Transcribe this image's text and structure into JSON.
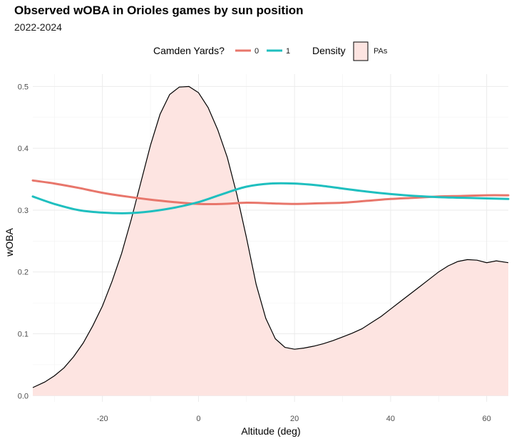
{
  "chart_data": {
    "type": "line",
    "title": "Observed wOBA in Orioles games by sun position",
    "subtitle": "2022-2024",
    "xlabel": "Altitude (deg)",
    "ylabel": "wOBA",
    "xlim": [
      -34.5,
      64.5
    ],
    "ylim": [
      -0.01,
      0.52
    ],
    "x_ticks": [
      -20,
      0,
      20,
      40,
      60
    ],
    "y_ticks": [
      0.0,
      0.1,
      0.2,
      0.3,
      0.4,
      0.5
    ],
    "y_tick_labels": [
      "0.0",
      "0.1",
      "0.2",
      "0.3",
      "0.4",
      "0.5"
    ],
    "grid": true,
    "legend": {
      "position": "top",
      "color_title": "Camden Yards?",
      "fill_title": "Density",
      "fill_label": "PAs"
    },
    "series": [
      {
        "name": "0",
        "color": "#e8766b",
        "x": [
          -34.5,
          -30,
          -25,
          -20,
          -15,
          -10,
          -5,
          0,
          5,
          10,
          15,
          20,
          25,
          30,
          35,
          40,
          45,
          50,
          55,
          60,
          64.5
        ],
        "y": [
          0.348,
          0.343,
          0.336,
          0.328,
          0.322,
          0.317,
          0.313,
          0.31,
          0.31,
          0.312,
          0.311,
          0.31,
          0.311,
          0.312,
          0.315,
          0.318,
          0.32,
          0.322,
          0.323,
          0.324,
          0.324
        ]
      },
      {
        "name": "1",
        "color": "#1fbfbf",
        "x": [
          -34.5,
          -30,
          -25,
          -20,
          -15,
          -10,
          -5,
          0,
          5,
          10,
          15,
          20,
          25,
          30,
          35,
          40,
          45,
          50,
          55,
          60,
          64.5
        ],
        "y": [
          0.322,
          0.31,
          0.3,
          0.296,
          0.295,
          0.298,
          0.304,
          0.313,
          0.326,
          0.338,
          0.343,
          0.343,
          0.34,
          0.335,
          0.33,
          0.326,
          0.323,
          0.321,
          0.32,
          0.319,
          0.318
        ]
      }
    ],
    "density": {
      "name": "PAs",
      "fill": "#fde4e1",
      "stroke": "#000000",
      "x": [
        -34.5,
        -32,
        -30,
        -28,
        -26,
        -24,
        -22,
        -20,
        -18,
        -16,
        -14,
        -12,
        -10,
        -8,
        -6,
        -4,
        -2,
        0,
        2,
        4,
        6,
        8,
        10,
        12,
        14,
        16,
        18,
        20,
        22,
        24,
        26,
        28,
        30,
        32,
        34,
        36,
        38,
        40,
        42,
        44,
        46,
        48,
        50,
        52,
        54,
        56,
        58,
        60,
        62,
        64.5
      ],
      "y": [
        0.013,
        0.022,
        0.032,
        0.045,
        0.063,
        0.085,
        0.113,
        0.145,
        0.185,
        0.23,
        0.285,
        0.345,
        0.405,
        0.455,
        0.487,
        0.499,
        0.5,
        0.49,
        0.466,
        0.43,
        0.385,
        0.325,
        0.255,
        0.18,
        0.125,
        0.092,
        0.078,
        0.075,
        0.077,
        0.08,
        0.084,
        0.089,
        0.095,
        0.101,
        0.108,
        0.118,
        0.128,
        0.14,
        0.152,
        0.164,
        0.176,
        0.188,
        0.2,
        0.21,
        0.217,
        0.22,
        0.219,
        0.215,
        0.218,
        0.215
      ]
    }
  }
}
